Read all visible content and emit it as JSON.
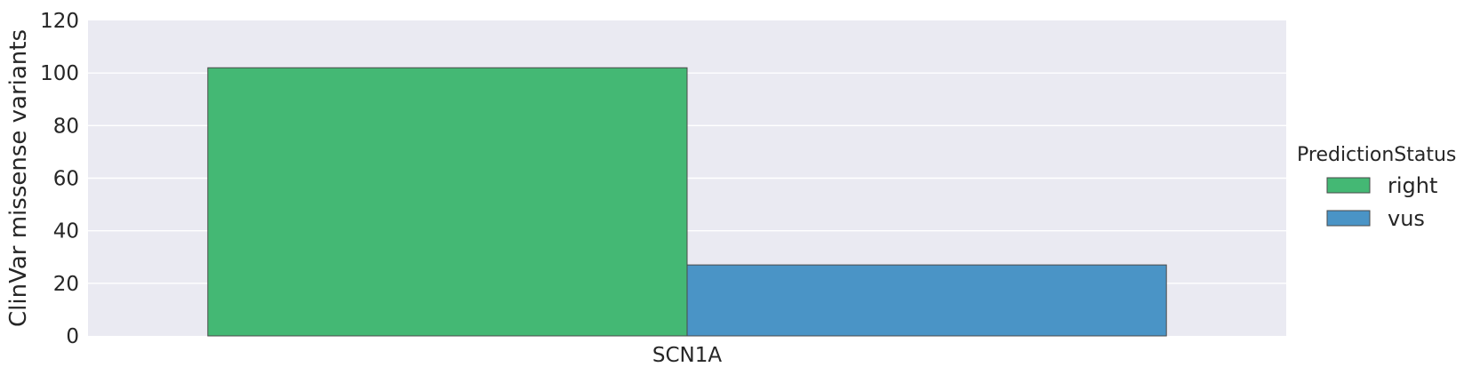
{
  "chart_data": {
    "type": "bar",
    "categories": [
      "SCN1A"
    ],
    "series": [
      {
        "name": "right",
        "values": [
          102
        ],
        "color": "#44b874"
      },
      {
        "name": "vus",
        "values": [
          27
        ],
        "color": "#4a94c6"
      }
    ],
    "xlabel": "",
    "ylabel": "ClinVar missense variants",
    "ylim": [
      0,
      120
    ],
    "yticks": [
      0,
      20,
      40,
      60,
      80,
      100,
      120
    ],
    "grid": true,
    "legend": {
      "title": "PredictionStatus",
      "placement": "right"
    },
    "colors": {
      "plot_background": "#eaeaf2",
      "grid": "#ffffff",
      "bar_edge": "#4a4a4a"
    }
  }
}
